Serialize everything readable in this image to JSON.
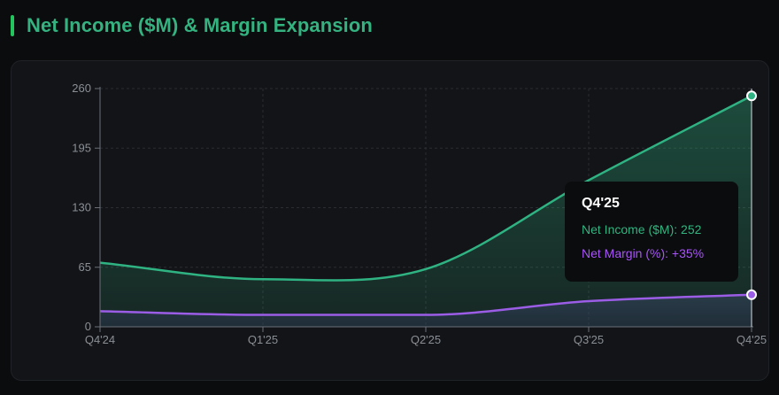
{
  "title": "Net Income ($M) & Margin Expansion",
  "colors": {
    "income": "#2fb383",
    "margin": "#9b5de5",
    "accent_bar": "#22c55e",
    "title": "#34b380"
  },
  "chart_data": {
    "type": "area",
    "categories": [
      "Q4'24",
      "Q1'25",
      "Q2'25",
      "Q3'25",
      "Q4'25"
    ],
    "series": [
      {
        "name": "Net Income ($M)",
        "values": [
          70,
          52,
          63,
          160,
          252
        ],
        "fill": true
      },
      {
        "name": "Net Margin (%)",
        "values": [
          17,
          13,
          13,
          28,
          35
        ],
        "fill": false
      }
    ],
    "y_ticks": [
      0,
      65,
      130,
      195,
      260
    ],
    "ylim": [
      0,
      260
    ],
    "grid": true
  },
  "tooltip": {
    "title": "Q4'25",
    "income_label": "Net Income ($M)",
    "income_value": "252",
    "margin_label": "Net Margin (%)",
    "margin_value": "+35%"
  }
}
